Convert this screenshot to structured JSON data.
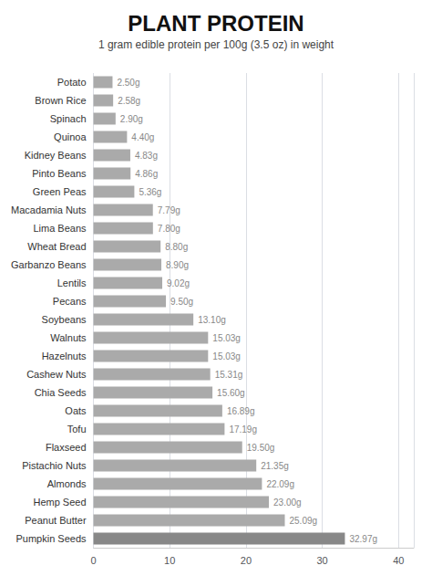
{
  "chart_data": {
    "type": "bar",
    "orientation": "horizontal",
    "title": "PLANT PROTEIN",
    "subtitle": "1 gram edible protein per 100g (3.5 oz) in weight",
    "categories": [
      "Potato",
      "Brown Rice",
      "Spinach",
      "Quinoa",
      "Kidney Beans",
      "Pinto Beans",
      "Green Peas",
      "Macadamia Nuts",
      "Lima Beans",
      "Wheat Bread",
      "Garbanzo Beans",
      "Lentils",
      "Pecans",
      "Soybeans",
      "Walnuts",
      "Hazelnuts",
      "Cashew Nuts",
      "Chia Seeds",
      "Oats",
      "Tofu",
      "Flaxseed",
      "Pistachio Nuts",
      "Almonds",
      "Hemp Seed",
      "Peanut Butter",
      "Pumpkin Seeds"
    ],
    "values": [
      2.5,
      2.58,
      2.9,
      4.4,
      4.83,
      4.86,
      5.36,
      7.79,
      7.8,
      8.8,
      8.9,
      9.02,
      9.5,
      13.1,
      15.03,
      15.03,
      15.31,
      15.6,
      16.89,
      17.19,
      19.5,
      21.35,
      22.09,
      23.0,
      25.09,
      32.97
    ],
    "value_labels": [
      "2.50g",
      "2.58g",
      "2.90g",
      "4.40g",
      "4.83g",
      "4.86g",
      "5.36g",
      "7.79g",
      "7.80g",
      "8.80g",
      "8.90g",
      "9.02g",
      "9.50g",
      "13.10g",
      "15.03g",
      "15.03g",
      "15.31g",
      "15.60g",
      "16.89g",
      "17.19g",
      "19.50g",
      "21.35g",
      "22.09g",
      "23.00g",
      "25.09g",
      "32.97g"
    ],
    "data_labels": true,
    "colors": [
      "#aaaaaa",
      "#aaaaaa",
      "#aaaaaa",
      "#aaaaaa",
      "#aaaaaa",
      "#aaaaaa",
      "#aaaaaa",
      "#aaaaaa",
      "#aaaaaa",
      "#aaaaaa",
      "#aaaaaa",
      "#aaaaaa",
      "#aaaaaa",
      "#aaaaaa",
      "#aaaaaa",
      "#aaaaaa",
      "#aaaaaa",
      "#aaaaaa",
      "#aaaaaa",
      "#aaaaaa",
      "#aaaaaa",
      "#aaaaaa",
      "#aaaaaa",
      "#aaaaaa",
      "#aaaaaa",
      "#888888"
    ],
    "xlim": [
      0,
      42
    ],
    "xticks": [
      0,
      10,
      20,
      30,
      40
    ],
    "grid": true
  }
}
